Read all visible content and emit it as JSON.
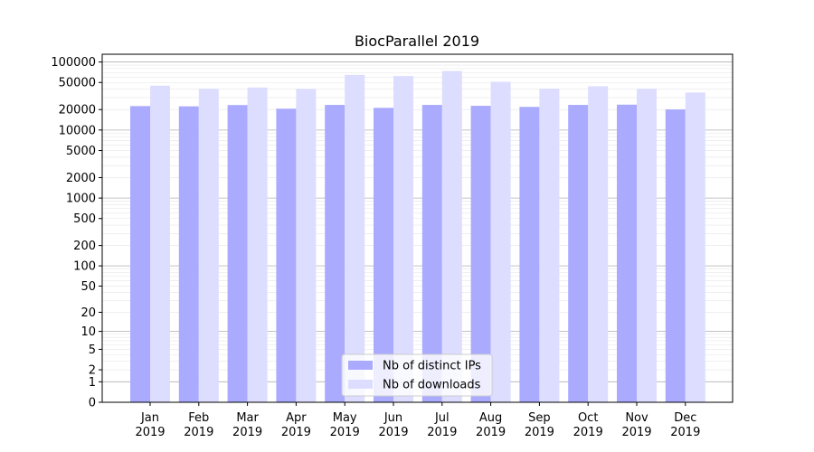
{
  "chart_data": {
    "type": "bar",
    "title": "BiocParallel 2019",
    "xlabel": "",
    "ylabel": "",
    "y_scale": "log1p",
    "ylim": [
      0,
      130000
    ],
    "grid": true,
    "legend_placement": "bottom-center",
    "categories": [
      [
        "Jan",
        "2019"
      ],
      [
        "Feb",
        "2019"
      ],
      [
        "Mar",
        "2019"
      ],
      [
        "Apr",
        "2019"
      ],
      [
        "May",
        "2019"
      ],
      [
        "Jun",
        "2019"
      ],
      [
        "Jul",
        "2019"
      ],
      [
        "Aug",
        "2019"
      ],
      [
        "Sep",
        "2019"
      ],
      [
        "Oct",
        "2019"
      ],
      [
        "Nov",
        "2019"
      ],
      [
        "Dec",
        "2019"
      ]
    ],
    "y_ticks": [
      0,
      1,
      2,
      5,
      10,
      20,
      50,
      100,
      200,
      500,
      1000,
      2000,
      5000,
      10000,
      20000,
      50000,
      100000
    ],
    "y_tick_labels": [
      "0",
      "1",
      "2",
      "5",
      "10",
      "20",
      "50",
      "100",
      "200",
      "500",
      "1000",
      "2000",
      "5000",
      "10000",
      "20000",
      "50000",
      "100000"
    ],
    "series": [
      {
        "name": "Nb of distinct IPs",
        "color": "#aaaaff",
        "values": [
          22500,
          22300,
          23300,
          20600,
          23400,
          21200,
          23400,
          22700,
          21900,
          23400,
          23600,
          20100
        ]
      },
      {
        "name": "Nb of downloads",
        "color": "#ddddff",
        "values": [
          44800,
          40400,
          42200,
          40300,
          64700,
          62200,
          73800,
          51100,
          40600,
          44000,
          40400,
          35600
        ]
      }
    ]
  }
}
